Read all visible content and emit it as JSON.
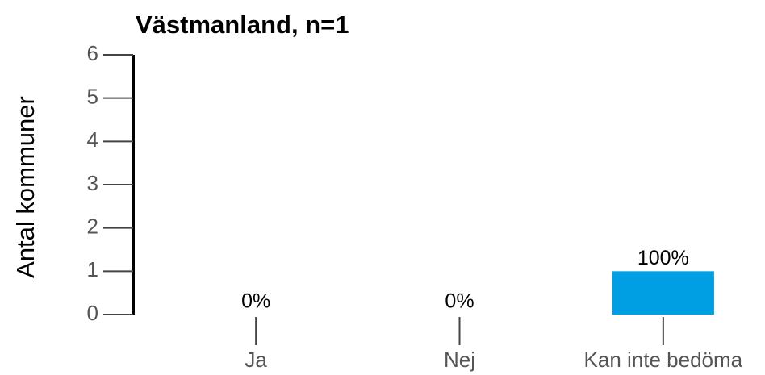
{
  "chart_data": {
    "type": "bar",
    "title": "Västmanland, n=1",
    "y_label": "Antal kommuner",
    "categories": [
      "Ja",
      "Nej",
      "Kan inte bedöma"
    ],
    "values": [
      0,
      0,
      1
    ],
    "value_labels": [
      "0%",
      "0%",
      "100%"
    ],
    "color": "#009fe3",
    "ylim": [
      0,
      6
    ],
    "yticks": [
      0,
      1,
      2,
      3,
      4,
      5,
      6
    ]
  }
}
